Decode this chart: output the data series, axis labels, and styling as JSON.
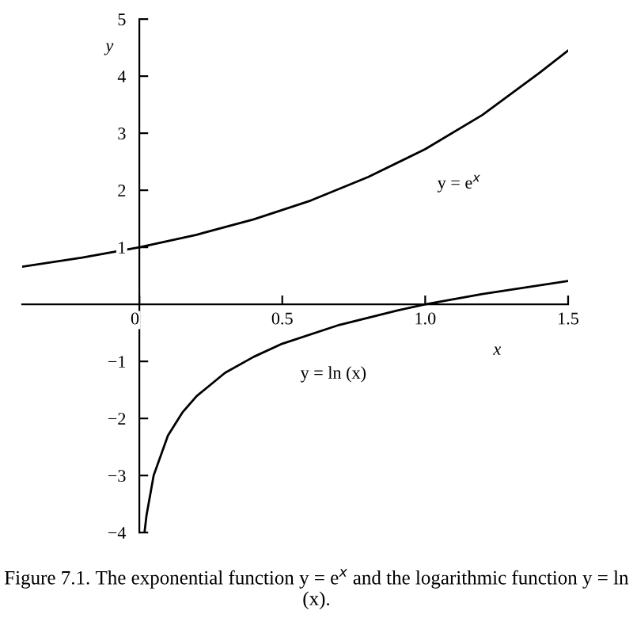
{
  "chart_data": {
    "type": "line",
    "xlabel": "x",
    "ylabel": "y",
    "xlim": [
      -0.41,
      1.5
    ],
    "ylim": [
      -4,
      5
    ],
    "xticks": [
      0,
      0.5,
      {
        "value": 1.0,
        "label": "1.0"
      },
      1.5
    ],
    "yticks": [
      {
        "value": -4,
        "label": "−4"
      },
      {
        "value": -3,
        "label": "−3"
      },
      {
        "value": -2,
        "label": "−2"
      },
      {
        "value": -1,
        "label": "−1"
      },
      1,
      2,
      3,
      4,
      5
    ],
    "grid": false,
    "series": [
      {
        "color": "#000000",
        "x": [
          -0.41,
          -0.2,
          0,
          0.2,
          0.4,
          0.6,
          0.8,
          1.0,
          1.2,
          1.4,
          1.5
        ],
        "values": [
          0.66,
          0.82,
          1.0,
          1.22,
          1.49,
          1.82,
          2.23,
          2.72,
          3.32,
          4.06,
          4.45
        ]
      },
      {
        "color": "#000000",
        "x": [
          0.018,
          0.025,
          0.05,
          0.1,
          0.15,
          0.2,
          0.3,
          0.4,
          0.5,
          0.7,
          0.9,
          1.0,
          1.2,
          1.5
        ],
        "values": [
          -4,
          -3.7,
          -3.0,
          -2.3,
          -1.9,
          -1.61,
          -1.2,
          -0.92,
          -0.69,
          -0.36,
          -0.11,
          0,
          0.18,
          0.41
        ]
      }
    ],
    "annotations": [
      "y = e$^{x}$",
      "y = ln (x)",
      "Figure 7.1. The exponential function y = e$^{x}$ and the logarithmic function y = ln (x)."
    ]
  }
}
